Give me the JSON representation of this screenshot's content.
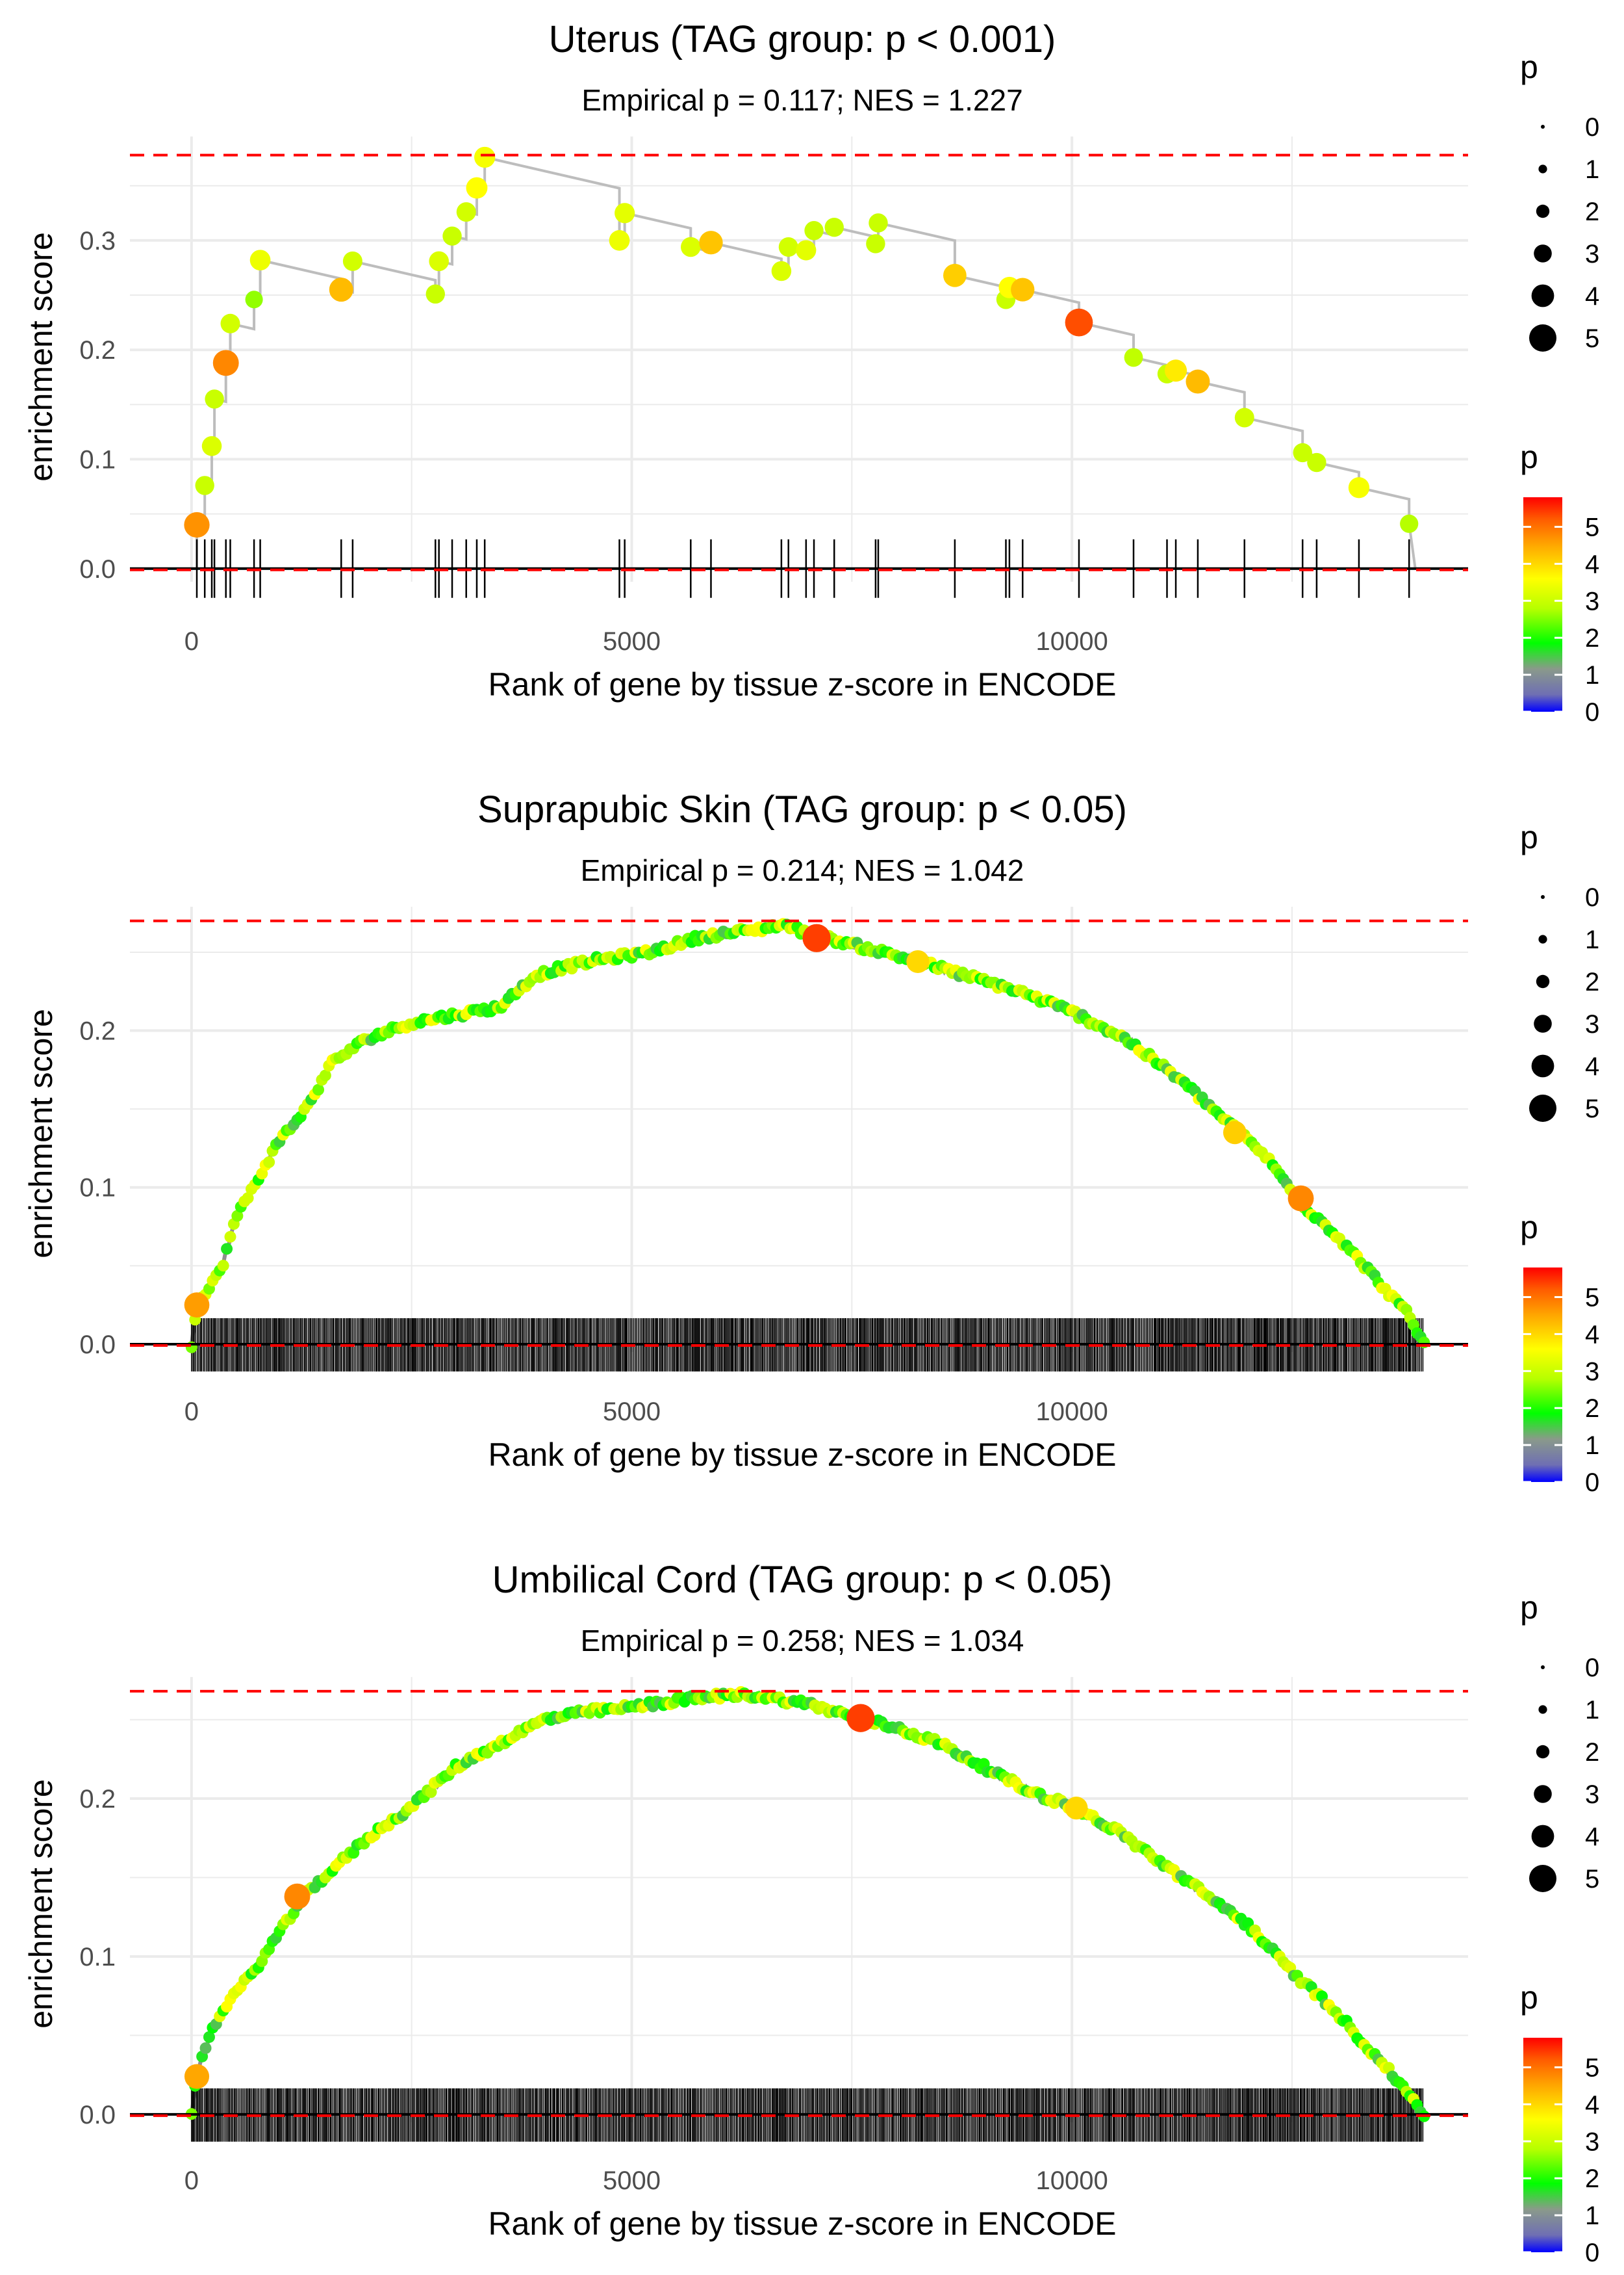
{
  "colors": {
    "grid": "#ebebeb",
    "curve": "#bdbdbd",
    "ref_line": "#ff0000",
    "tick": "#000000",
    "gradient": [
      "#0000ff",
      "#6f6fb3",
      "#8a9a8a",
      "#00ff00",
      "#b6ff00",
      "#ffff00",
      "#ffa500",
      "#ff5a00",
      "#ff0000"
    ]
  },
  "legend": {
    "size_title": "p",
    "size_labels": [
      "0",
      "1",
      "2",
      "3",
      "4",
      "5"
    ],
    "color_title": "p",
    "color_labels": [
      "5",
      "4",
      "3",
      "2",
      "1",
      "0"
    ]
  },
  "chart_data": [
    {
      "type": "scatter",
      "id": "uterus",
      "title": "Uterus (TAG group: p < 0.001)",
      "subtitle": "Empirical p = 0.117; NES = 1.227",
      "xlabel": "Rank of gene by tissue z-score in ENCODE",
      "ylabel": "enrichment score",
      "xlim": [
        -700,
        14500
      ],
      "ylim": [
        -0.012,
        0.395
      ],
      "xticks": [
        0,
        5000,
        10000
      ],
      "yticks": [
        0.0,
        0.1,
        0.2,
        0.3
      ],
      "yticklabels": [
        "0.0",
        "0.1",
        "0.2",
        "0.3"
      ],
      "max_es": 0.378,
      "curve_end": 13900,
      "dense": false,
      "hits": [
        [
          60,
          0.04,
          4.7
        ],
        [
          150,
          0.076,
          3.0
        ],
        [
          230,
          0.112,
          3.2
        ],
        [
          260,
          0.155,
          3.0
        ],
        [
          390,
          0.188,
          4.8
        ],
        [
          440,
          0.224,
          3.1
        ],
        [
          710,
          0.246,
          2.6
        ],
        [
          780,
          0.282,
          3.4
        ],
        [
          1700,
          0.255,
          4.3
        ],
        [
          1830,
          0.281,
          3.1
        ],
        [
          2770,
          0.251,
          3.0
        ],
        [
          2810,
          0.281,
          3.2
        ],
        [
          2960,
          0.304,
          3.0
        ],
        [
          3120,
          0.326,
          3.1
        ],
        [
          3240,
          0.348,
          3.6
        ],
        [
          3330,
          0.376,
          3.5
        ],
        [
          4860,
          0.3,
          3.4
        ],
        [
          4920,
          0.325,
          3.3
        ],
        [
          5670,
          0.294,
          3.2
        ],
        [
          5900,
          0.298,
          4.2
        ],
        [
          6700,
          0.272,
          3.2
        ],
        [
          6780,
          0.294,
          3.1
        ],
        [
          6980,
          0.291,
          3.3
        ],
        [
          7070,
          0.309,
          3.0
        ],
        [
          7300,
          0.312,
          3.0
        ],
        [
          7770,
          0.297,
          3.0
        ],
        [
          7800,
          0.316,
          3.0
        ],
        [
          8670,
          0.268,
          4.1
        ],
        [
          9250,
          0.246,
          3.0
        ],
        [
          9290,
          0.257,
          3.6
        ],
        [
          9440,
          0.255,
          4.2
        ],
        [
          10080,
          0.225,
          5.3
        ],
        [
          10700,
          0.193,
          2.9
        ],
        [
          11080,
          0.178,
          3.0
        ],
        [
          11180,
          0.181,
          3.8
        ],
        [
          11430,
          0.171,
          4.3
        ],
        [
          11960,
          0.138,
          3.1
        ],
        [
          12620,
          0.106,
          3.0
        ],
        [
          12780,
          0.097,
          3.0
        ],
        [
          13260,
          0.074,
          3.5
        ],
        [
          13830,
          0.041,
          2.8
        ]
      ]
    },
    {
      "type": "scatter",
      "id": "suprapubic-skin",
      "title": "Suprapubic Skin (TAG group: p < 0.05)",
      "subtitle": "Empirical p = 0.214; NES = 1.042",
      "xlabel": "Rank of gene by tissue z-score in ENCODE",
      "ylabel": "enrichment score",
      "xlim": [
        -700,
        14500
      ],
      "ylim": [
        -0.005,
        0.279
      ],
      "xticks": [
        0,
        5000,
        10000
      ],
      "yticks": [
        0.0,
        0.1,
        0.2
      ],
      "yticklabels": [
        "0.0",
        "0.1",
        "0.2"
      ],
      "max_es": 0.27,
      "curve_end": 14000,
      "dense": true,
      "curve": [
        [
          0,
          0.0
        ],
        [
          60,
          0.025
        ],
        [
          200,
          0.035
        ],
        [
          350,
          0.05
        ],
        [
          500,
          0.08
        ],
        [
          700,
          0.1
        ],
        [
          1000,
          0.13
        ],
        [
          1300,
          0.15
        ],
        [
          1600,
          0.18
        ],
        [
          2000,
          0.195
        ],
        [
          2500,
          0.205
        ],
        [
          3000,
          0.21
        ],
        [
          3500,
          0.215
        ],
        [
          3900,
          0.235
        ],
        [
          4200,
          0.24
        ],
        [
          4600,
          0.245
        ],
        [
          5200,
          0.25
        ],
        [
          5800,
          0.26
        ],
        [
          6500,
          0.265
        ],
        [
          6700,
          0.268
        ],
        [
          7000,
          0.262
        ],
        [
          7500,
          0.255
        ],
        [
          8200,
          0.245
        ],
        [
          8800,
          0.235
        ],
        [
          9400,
          0.225
        ],
        [
          10000,
          0.212
        ],
        [
          10600,
          0.195
        ],
        [
          11200,
          0.17
        ],
        [
          11800,
          0.14
        ],
        [
          12200,
          0.12
        ],
        [
          12600,
          0.09
        ],
        [
          13000,
          0.07
        ],
        [
          13400,
          0.045
        ],
        [
          13800,
          0.02
        ],
        [
          14000,
          0.0
        ]
      ],
      "highlights": [
        [
          60,
          0.025,
          4.6
        ],
        [
          7100,
          0.259,
          5.4
        ],
        [
          12600,
          0.093,
          4.8
        ],
        [
          11850,
          0.135,
          4.1
        ],
        [
          8250,
          0.244,
          4.0
        ]
      ]
    },
    {
      "type": "scatter",
      "id": "umbilical-cord",
      "title": "Umbilical Cord (TAG group: p < 0.05)",
      "subtitle": "Empirical p = 0.258; NES = 1.034",
      "xlabel": "Rank of gene by tissue z-score in ENCODE",
      "ylabel": "enrichment score",
      "xlim": [
        -700,
        14500
      ],
      "ylim": [
        -0.005,
        0.277
      ],
      "xticks": [
        0,
        5000,
        10000
      ],
      "yticks": [
        0.0,
        0.1,
        0.2
      ],
      "yticklabels": [
        "0.0",
        "0.1",
        "0.2"
      ],
      "max_es": 0.268,
      "curve_end": 14000,
      "dense": true,
      "curve": [
        [
          0,
          0.0
        ],
        [
          60,
          0.025
        ],
        [
          200,
          0.05
        ],
        [
          400,
          0.07
        ],
        [
          700,
          0.09
        ],
        [
          1000,
          0.115
        ],
        [
          1300,
          0.14
        ],
        [
          1600,
          0.155
        ],
        [
          2000,
          0.175
        ],
        [
          2500,
          0.195
        ],
        [
          3000,
          0.22
        ],
        [
          3500,
          0.235
        ],
        [
          4000,
          0.25
        ],
        [
          4500,
          0.255
        ],
        [
          5000,
          0.258
        ],
        [
          5500,
          0.262
        ],
        [
          6000,
          0.265
        ],
        [
          6300,
          0.266
        ],
        [
          7000,
          0.26
        ],
        [
          7500,
          0.252
        ],
        [
          8000,
          0.245
        ],
        [
          8500,
          0.235
        ],
        [
          9000,
          0.22
        ],
        [
          9500,
          0.205
        ],
        [
          10000,
          0.195
        ],
        [
          10500,
          0.18
        ],
        [
          11000,
          0.16
        ],
        [
          11500,
          0.14
        ],
        [
          12000,
          0.12
        ],
        [
          12500,
          0.09
        ],
        [
          13000,
          0.065
        ],
        [
          13400,
          0.04
        ],
        [
          13800,
          0.015
        ],
        [
          14000,
          0.0
        ]
      ],
      "highlights": [
        [
          60,
          0.024,
          4.5
        ],
        [
          1200,
          0.138,
          4.8
        ],
        [
          7600,
          0.251,
          5.4
        ],
        [
          10050,
          0.194,
          4.0
        ]
      ]
    }
  ]
}
